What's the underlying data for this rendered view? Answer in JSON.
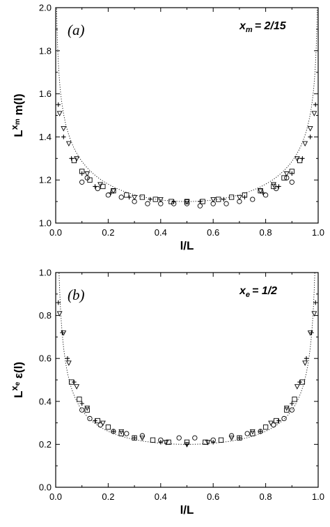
{
  "chart_data": [
    {
      "type": "scatter",
      "panel_label": "(a)",
      "annotation": {
        "symbol": "x",
        "subscript": "m",
        "value": "= 2/15"
      },
      "xlabel": "l/L",
      "ylabel": {
        "base": "L",
        "sup_base": "x",
        "sup_sub": "m",
        "tail": " m(l)"
      },
      "xlim": [
        0,
        1
      ],
      "ylim": [
        1.0,
        2.0
      ],
      "xticks": [
        "0.0",
        "0.2",
        "0.4",
        "0.6",
        "0.8",
        "1.0"
      ],
      "yticks": [
        "1.0",
        "1.2",
        "1.4",
        "1.6",
        "1.8",
        "2.0"
      ],
      "grid": false,
      "curve": {
        "style": "dotted",
        "min_value": 1.1,
        "exponent": 0.1333
      },
      "series": [
        {
          "marker": "circle",
          "x": [
            0.1,
            0.12,
            0.16,
            0.2,
            0.25,
            0.3,
            0.35,
            0.4,
            0.45,
            0.5,
            0.55,
            0.6,
            0.65,
            0.7,
            0.75,
            0.8,
            0.84,
            0.88,
            0.9
          ],
          "y": [
            1.19,
            1.21,
            1.16,
            1.13,
            1.12,
            1.1,
            1.09,
            1.09,
            1.09,
            1.09,
            1.08,
            1.09,
            1.09,
            1.1,
            1.11,
            1.13,
            1.16,
            1.21,
            1.19
          ]
        },
        {
          "marker": "square",
          "x": [
            0.07,
            0.1,
            0.13,
            0.18,
            0.22,
            0.27,
            0.33,
            0.38,
            0.44,
            0.5,
            0.56,
            0.62,
            0.67,
            0.72,
            0.78,
            0.83,
            0.87,
            0.9,
            0.93
          ],
          "y": [
            1.29,
            1.24,
            1.2,
            1.17,
            1.15,
            1.13,
            1.12,
            1.11,
            1.1,
            1.1,
            1.1,
            1.11,
            1.12,
            1.13,
            1.15,
            1.17,
            1.21,
            1.24,
            1.29
          ]
        },
        {
          "marker": "triangle-down",
          "x": [
            0.015,
            0.03,
            0.05,
            0.08,
            0.12,
            0.17,
            0.22,
            0.3,
            0.4,
            0.5,
            0.6,
            0.7,
            0.78,
            0.83,
            0.88,
            0.92,
            0.95,
            0.97,
            0.985
          ],
          "y": [
            1.51,
            1.44,
            1.37,
            1.3,
            1.23,
            1.18,
            1.15,
            1.12,
            1.11,
            1.1,
            1.11,
            1.12,
            1.15,
            1.18,
            1.23,
            1.3,
            1.37,
            1.44,
            1.51
          ]
        },
        {
          "marker": "plus",
          "x": [
            0.01,
            0.03,
            0.06,
            0.1,
            0.15,
            0.21,
            0.28,
            0.36,
            0.45,
            0.55,
            0.64,
            0.72,
            0.79,
            0.85,
            0.9,
            0.94,
            0.97,
            0.99
          ],
          "y": [
            1.55,
            1.4,
            1.3,
            1.23,
            1.17,
            1.14,
            1.12,
            1.11,
            1.1,
            1.1,
            1.11,
            1.12,
            1.14,
            1.17,
            1.23,
            1.3,
            1.4,
            1.55
          ]
        }
      ]
    },
    {
      "type": "scatter",
      "panel_label": "(b)",
      "annotation": {
        "symbol": "x",
        "subscript": "e",
        "value": "= 1/2"
      },
      "xlabel": "l/L",
      "ylabel": {
        "base": "L",
        "sup_base": "x",
        "sup_sub": "e",
        "tail": " ε(l)"
      },
      "xlim": [
        0,
        1
      ],
      "ylim": [
        0.0,
        1.0
      ],
      "xticks": [
        "0.0",
        "0.2",
        "0.4",
        "0.6",
        "0.8",
        "1.0"
      ],
      "yticks": [
        "0.0",
        "0.2",
        "0.4",
        "0.6",
        "0.8",
        "1.0"
      ],
      "grid": false,
      "curve": {
        "style": "dotted",
        "min_value": 0.2,
        "exponent": 0.5
      },
      "series": [
        {
          "marker": "circle",
          "x": [
            0.1,
            0.13,
            0.17,
            0.22,
            0.27,
            0.33,
            0.4,
            0.47,
            0.53,
            0.6,
            0.67,
            0.73,
            0.78,
            0.83,
            0.87,
            0.9
          ],
          "y": [
            0.36,
            0.32,
            0.29,
            0.26,
            0.25,
            0.24,
            0.22,
            0.23,
            0.23,
            0.22,
            0.24,
            0.25,
            0.26,
            0.29,
            0.32,
            0.36
          ]
        },
        {
          "marker": "square",
          "x": [
            0.06,
            0.09,
            0.12,
            0.16,
            0.2,
            0.25,
            0.3,
            0.37,
            0.43,
            0.5,
            0.57,
            0.63,
            0.7,
            0.75,
            0.8,
            0.84,
            0.88,
            0.91,
            0.94
          ],
          "y": [
            0.49,
            0.41,
            0.36,
            0.31,
            0.28,
            0.25,
            0.23,
            0.22,
            0.21,
            0.21,
            0.21,
            0.22,
            0.23,
            0.25,
            0.28,
            0.31,
            0.36,
            0.41,
            0.49
          ]
        },
        {
          "marker": "triangle-down",
          "x": [
            0.015,
            0.03,
            0.05,
            0.08,
            0.12,
            0.18,
            0.25,
            0.33,
            0.42,
            0.5,
            0.58,
            0.67,
            0.75,
            0.82,
            0.88,
            0.92,
            0.95,
            0.97,
            0.985
          ],
          "y": [
            0.81,
            0.72,
            0.58,
            0.47,
            0.37,
            0.3,
            0.26,
            0.23,
            0.21,
            0.2,
            0.21,
            0.23,
            0.26,
            0.3,
            0.37,
            0.47,
            0.58,
            0.72,
            0.81
          ]
        },
        {
          "marker": "plus",
          "x": [
            0.01,
            0.025,
            0.045,
            0.07,
            0.1,
            0.15,
            0.22,
            0.3,
            0.4,
            0.5,
            0.6,
            0.7,
            0.78,
            0.85,
            0.9,
            0.93,
            0.955,
            0.975,
            0.99
          ],
          "y": [
            0.86,
            0.72,
            0.6,
            0.49,
            0.39,
            0.31,
            0.26,
            0.23,
            0.21,
            0.2,
            0.21,
            0.23,
            0.26,
            0.31,
            0.39,
            0.49,
            0.6,
            0.72,
            0.86
          ]
        }
      ]
    }
  ]
}
